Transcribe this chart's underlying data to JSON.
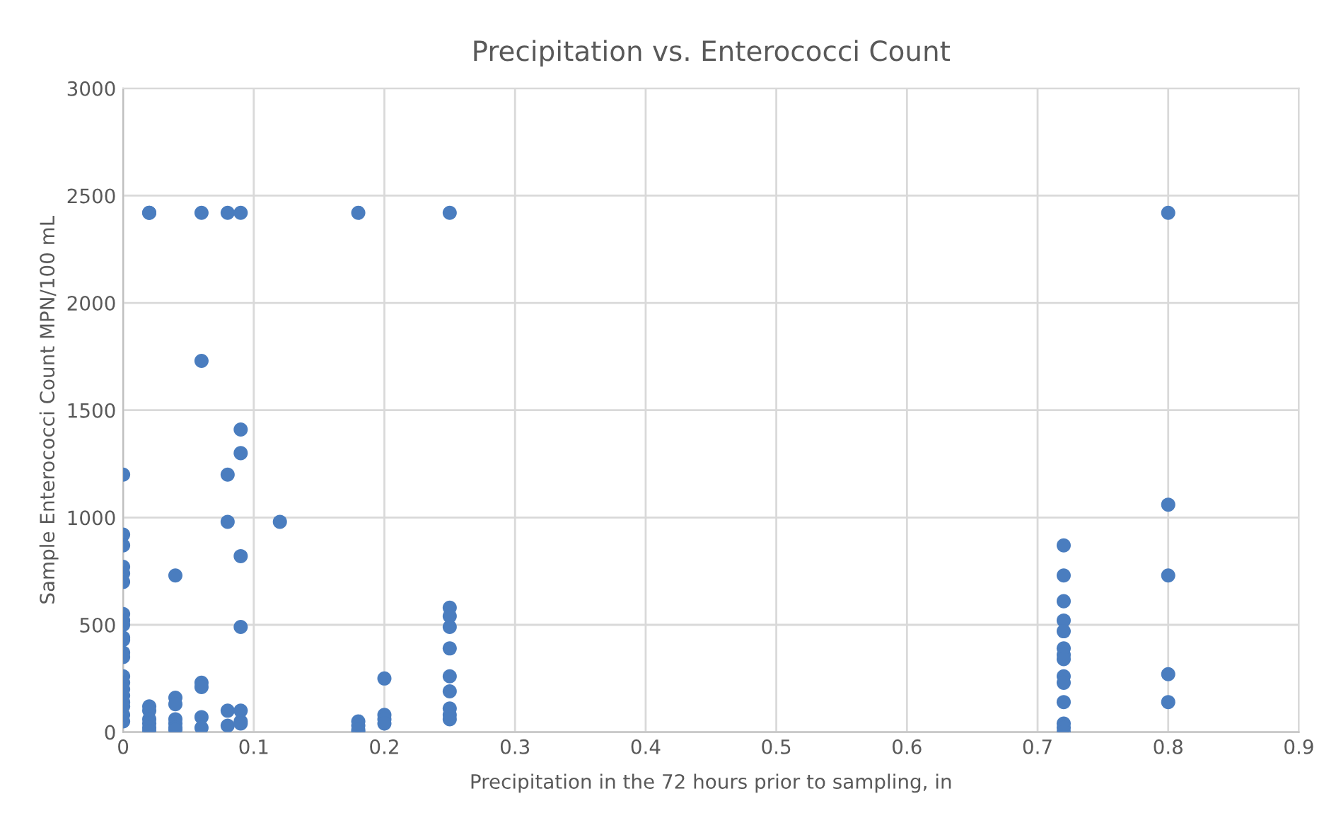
{
  "chart_data": {
    "type": "scatter",
    "title": "Precipitation vs. Enterococci Count",
    "xlabel": "Precipitation in the 72 hours prior to sampling, in",
    "ylabel": "Sample Enterococci Count MPN/100 mL",
    "series": [
      {
        "color": "#4a7dbf",
        "x": [
          0,
          0,
          0,
          0,
          0,
          0,
          0,
          0,
          0,
          0,
          0,
          0,
          0,
          0,
          0,
          0,
          0,
          0,
          0,
          0,
          0,
          0.02,
          0.02,
          0.02,
          0.02,
          0.02,
          0.02,
          0.02,
          0.02,
          0.04,
          0.04,
          0.04,
          0.04,
          0.04,
          0.04,
          0.04,
          0.06,
          0.06,
          0.06,
          0.06,
          0.06,
          0.06,
          0.08,
          0.08,
          0.08,
          0.08,
          0.08,
          0.09,
          0.09,
          0.09,
          0.09,
          0.09,
          0.09,
          0.09,
          0.09,
          0.12,
          0.18,
          0.18,
          0.18,
          0.18,
          0.18,
          0.2,
          0.2,
          0.2,
          0.2,
          0.25,
          0.25,
          0.25,
          0.25,
          0.25,
          0.25,
          0.25,
          0.25,
          0.25,
          0.25,
          0.72,
          0.72,
          0.72,
          0.72,
          0.72,
          0.72,
          0.72,
          0.72,
          0.72,
          0.72,
          0.72,
          0.72,
          0.72,
          0.72,
          0.8,
          0.8,
          0.8,
          0.8,
          0.8
        ],
        "values": [
          1200,
          920,
          870,
          770,
          740,
          700,
          550,
          520,
          500,
          440,
          430,
          370,
          350,
          260,
          230,
          200,
          170,
          140,
          120,
          80,
          50,
          2420,
          2420,
          120,
          100,
          60,
          40,
          20,
          5,
          730,
          160,
          130,
          60,
          40,
          20,
          10,
          2420,
          1730,
          230,
          210,
          70,
          20,
          2420,
          1200,
          980,
          100,
          30,
          2420,
          1410,
          1300,
          820,
          490,
          100,
          50,
          40,
          980,
          2420,
          50,
          30,
          10,
          0,
          250,
          80,
          60,
          40,
          2420,
          580,
          540,
          490,
          390,
          260,
          190,
          110,
          80,
          60,
          870,
          730,
          610,
          520,
          470,
          390,
          360,
          340,
          260,
          230,
          140,
          40,
          20,
          0,
          2420,
          1060,
          730,
          270,
          140
        ]
      }
    ],
    "xlim": [
      0,
      0.9
    ],
    "xticks": [
      0,
      0.1,
      0.2,
      0.3,
      0.4,
      0.5,
      0.6,
      0.7,
      0.8,
      0.9
    ],
    "ylim": [
      0,
      3000
    ],
    "yticks": [
      0,
      500,
      1000,
      1500,
      2000,
      2500,
      3000
    ],
    "grid": true,
    "marker": "circle"
  }
}
